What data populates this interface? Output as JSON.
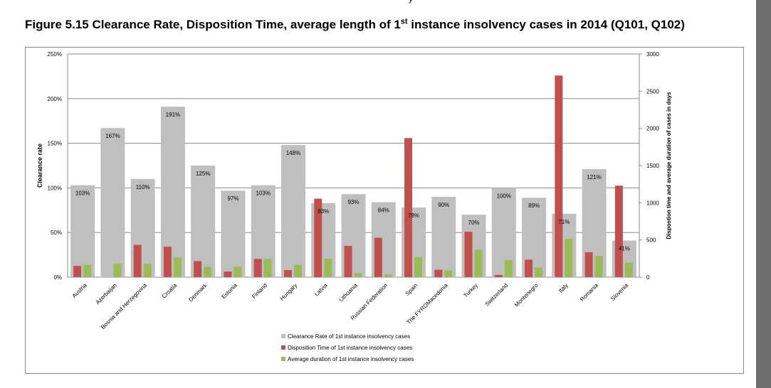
{
  "page": {
    "title_main": "Figure 5.15 Clearance Rate, Disposition Time, average length of 1",
    "title_sup": "st",
    "title_rest": " instance insolvency cases in 2014 (Q101, Q102)",
    "top_fragment": "y"
  },
  "colors": {
    "clearance": "#bfbfbf",
    "disposition": "#c0504d",
    "duration": "#9bbb59",
    "scrollbar": "#6e6e6e"
  },
  "chart_data": {
    "type": "bar",
    "title": "",
    "ylabel": "Clearance rate",
    "y2label": "Dispostion time and average duration of cases in days",
    "ylim": [
      0,
      250
    ],
    "y2lim": [
      0,
      3000
    ],
    "yticks": [
      "0%",
      "50%",
      "100%",
      "150%",
      "200%",
      "250%"
    ],
    "y2ticks": [
      "0",
      "500",
      "1000",
      "1500",
      "2000",
      "2500",
      "3000"
    ],
    "grid": true,
    "legend_position": "bottom-center",
    "categories": [
      "Austria",
      "Azerbaijan",
      "Bosnia and Herzegovina",
      "Croatia",
      "Denmark",
      "Estonia",
      "Finland",
      "Hungary",
      "Latvia",
      "Lithuania",
      "Russian Federation",
      "Spain",
      "The FYROMacedonia",
      "Turkey",
      "Switzerland",
      "Montenegro",
      "Italy",
      "Romania",
      "Slovenia"
    ],
    "series": [
      {
        "name": "Clearance Rate of 1st instance insolvency cases",
        "axis": "left",
        "values": [
          103,
          167,
          110,
          191,
          125,
          97,
          103,
          148,
          83,
          93,
          84,
          78,
          90,
          70,
          100,
          89,
          71,
          121,
          41
        ],
        "labels": [
          "103%",
          "167%",
          "110%",
          "191%",
          "125%",
          "97%",
          "103%",
          "148%",
          "83%",
          "93%",
          "84%",
          "78%",
          "90%",
          "70%",
          "100%",
          "89%",
          "71%",
          "121%",
          "41%"
        ]
      },
      {
        "name": "Disposition Time  of 1st instance insolvency cases",
        "axis": "right",
        "values": [
          150,
          0,
          435,
          410,
          215,
          75,
          245,
          95,
          1055,
          420,
          530,
          1870,
          100,
          610,
          30,
          235,
          2710,
          335,
          1230
        ]
      },
      {
        "name": "Average duration of 1st instance insolvency cases",
        "axis": "right",
        "values": [
          165,
          180,
          180,
          265,
          140,
          140,
          245,
          165,
          250,
          55,
          35,
          270,
          90,
          370,
          230,
          130,
          515,
          285,
          195
        ]
      }
    ]
  }
}
